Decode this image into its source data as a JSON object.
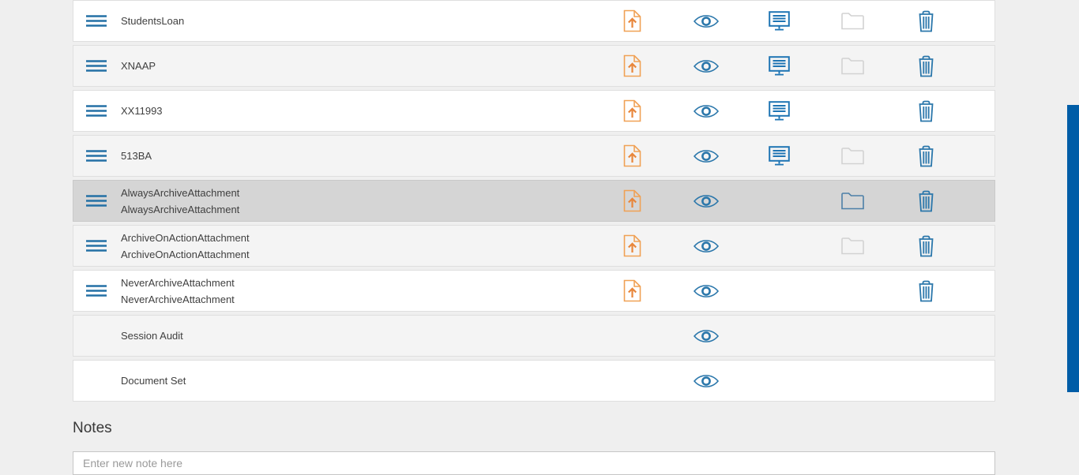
{
  "theme": {
    "page_bg": "#efefef",
    "row_bg_white": "#ffffff",
    "row_bg_gray": "#f4f4f4",
    "row_bg_selected": "#d5d5d5",
    "row_border": "#dfdfdf",
    "text_color": "#3f3f3f",
    "drag_color": "#2470a5",
    "upload_color": "#f0a155",
    "upload_arrow_color": "#e8863b",
    "view_color": "#2b77ab",
    "display_color": "#1f75b4",
    "folder_active_color": "#4d80a8",
    "delete_color": "#2b77ab",
    "disabled_color": "#d2d2d2",
    "scrollbar_color": "#005da7",
    "placeholder_color": "#9a9a9a"
  },
  "icon_names": {
    "drag": "drag-handle-icon",
    "upload": "file-upload-icon",
    "view": "eye-icon",
    "display": "monitor-icon",
    "folder": "folder-icon",
    "delete": "trash-icon"
  },
  "list": {
    "action_order": [
      "upload",
      "view",
      "display",
      "folder",
      "delete"
    ],
    "rows": [
      {
        "lines": [
          "StudentsLoan"
        ],
        "variant": "white",
        "drag": true,
        "actions": {
          "upload": "active",
          "view": "active",
          "display": "active",
          "folder": "disabled",
          "delete": "active"
        }
      },
      {
        "lines": [
          "XNAAP"
        ],
        "variant": "gray",
        "drag": true,
        "actions": {
          "upload": "active",
          "view": "active",
          "display": "active",
          "folder": "disabled",
          "delete": "active"
        }
      },
      {
        "lines": [
          "XX11993"
        ],
        "variant": "white",
        "drag": true,
        "actions": {
          "upload": "active",
          "view": "active",
          "display": "active",
          "folder": "none",
          "delete": "active"
        }
      },
      {
        "lines": [
          "513BA"
        ],
        "variant": "gray",
        "drag": true,
        "actions": {
          "upload": "active",
          "view": "active",
          "display": "active",
          "folder": "disabled",
          "delete": "active"
        }
      },
      {
        "lines": [
          "AlwaysArchiveAttachment",
          "AlwaysArchiveAttachment"
        ],
        "variant": "selected",
        "drag": true,
        "actions": {
          "upload": "active",
          "view": "active",
          "display": "none",
          "folder": "active",
          "delete": "active"
        }
      },
      {
        "lines": [
          "ArchiveOnActionAttachment",
          "ArchiveOnActionAttachment"
        ],
        "variant": "gray",
        "drag": true,
        "actions": {
          "upload": "active",
          "view": "active",
          "display": "none",
          "folder": "disabled",
          "delete": "active"
        }
      },
      {
        "lines": [
          "NeverArchiveAttachment",
          "NeverArchiveAttachment"
        ],
        "variant": "white",
        "drag": true,
        "actions": {
          "upload": "active",
          "view": "active",
          "display": "none",
          "folder": "none",
          "delete": "active"
        }
      },
      {
        "lines": [
          "Session Audit"
        ],
        "variant": "gray",
        "drag": false,
        "actions": {
          "upload": "none",
          "view": "active",
          "display": "none",
          "folder": "none",
          "delete": "none"
        }
      },
      {
        "lines": [
          "Document Set"
        ],
        "variant": "white",
        "drag": false,
        "actions": {
          "upload": "none",
          "view": "active",
          "display": "none",
          "folder": "none",
          "delete": "none"
        }
      }
    ]
  },
  "notes": {
    "heading": "Notes",
    "input_placeholder": "Enter new note here",
    "input_value": ""
  }
}
